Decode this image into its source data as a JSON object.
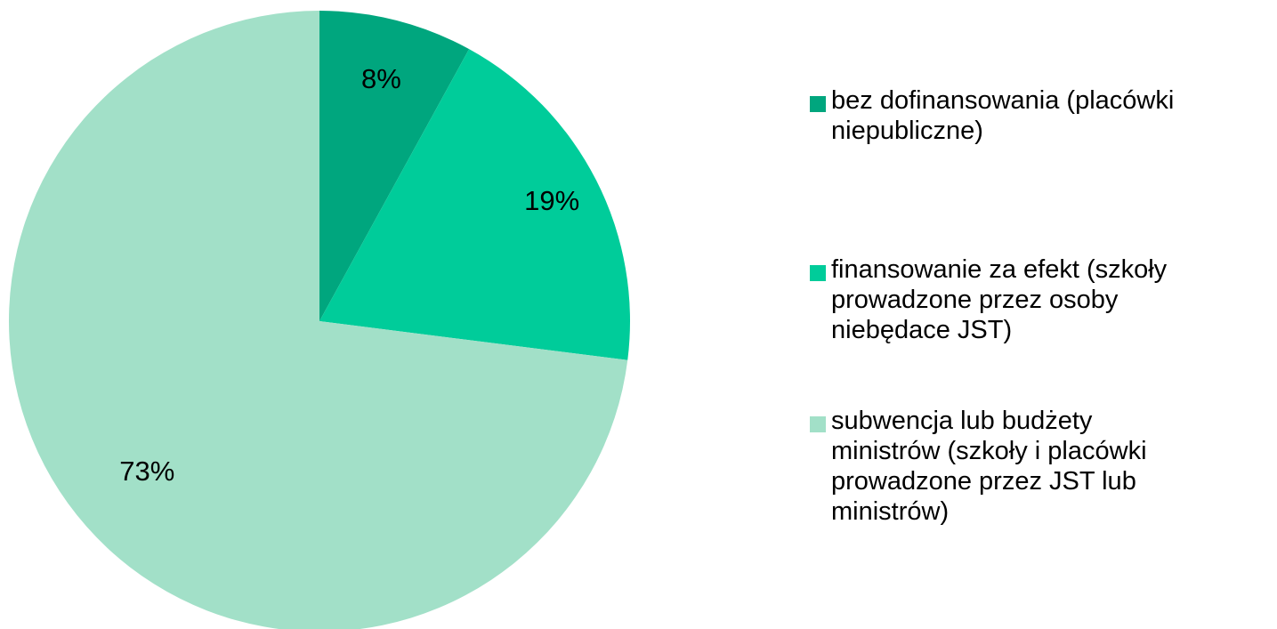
{
  "chart_data": {
    "type": "pie",
    "title": "",
    "start_angle_deg": 0,
    "direction": "clockwise",
    "slices": [
      {
        "name": "bez dofinansowania (placówki\nniepubliczne)",
        "value": 8,
        "label": "8%",
        "color": "#00a67e"
      },
      {
        "name": "finansowanie za efekt (szkoły\nprowadzone przez osoby\nniebędace JST)",
        "value": 19,
        "label": "19%",
        "color": "#00cc9a"
      },
      {
        "name": "subwencja lub budżety\nministrów (szkoły i placówki\nprowadzone przez JST lub\nministrów)",
        "value": 73,
        "label": "73%",
        "color": "#a2e0c8"
      }
    ],
    "legend_position": "right"
  }
}
